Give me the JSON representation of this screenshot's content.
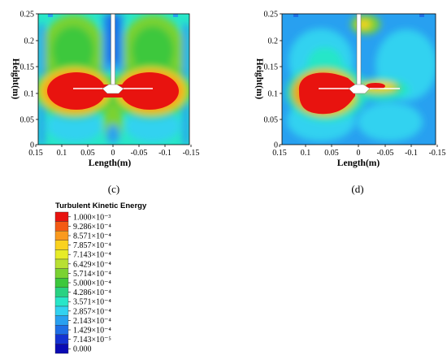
{
  "panels": [
    {
      "label": "(c)",
      "xlabel": "Length(m)",
      "ylabel": "Height(m)",
      "xticks": [
        "0.15",
        "0.1",
        "0.05",
        "0",
        "-0.05",
        "-0.1",
        "-0.15"
      ],
      "yticks": [
        "0",
        "0.05",
        "0.1",
        "0.15",
        "0.2",
        "0.25"
      ]
    },
    {
      "label": "(d)",
      "xlabel": "Length(m)",
      "ylabel": "Height(m)",
      "xticks": [
        "0.15",
        "0.1",
        "0.05",
        "0",
        "-0.05",
        "-0.1",
        "-0.15"
      ],
      "yticks": [
        "0",
        "0.05",
        "0.1",
        "0.15",
        "0.2",
        "0.25"
      ]
    }
  ],
  "legend": {
    "title": "Turbulent Kinetic Energy",
    "levels": [
      {
        "label": "1.000×10⁻³",
        "color": "#e8130f"
      },
      {
        "label": "9.286×10⁻⁴",
        "color": "#f45a14"
      },
      {
        "label": "8.571×10⁻⁴",
        "color": "#fa9a1e"
      },
      {
        "label": "7.857×10⁻⁴",
        "color": "#fad21e"
      },
      {
        "label": "7.143×10⁻⁴",
        "color": "#e6ec28"
      },
      {
        "label": "6.429×10⁻⁴",
        "color": "#b8e032"
      },
      {
        "label": "5.714×10⁻⁴",
        "color": "#7ad232"
      },
      {
        "label": "5.000×10⁻⁴",
        "color": "#3cc83c"
      },
      {
        "label": "4.286×10⁻⁴",
        "color": "#28d282"
      },
      {
        "label": "3.571×10⁻⁴",
        "color": "#28e6c8"
      },
      {
        "label": "2.857×10⁻⁴",
        "color": "#32d2f0"
      },
      {
        "label": "2.143×10⁻⁴",
        "color": "#28a0f0"
      },
      {
        "label": "1.429×10⁻⁴",
        "color": "#1e6ee6"
      },
      {
        "label": "7.143×10⁻⁵",
        "color": "#1432d2"
      },
      {
        "label": "0.000",
        "color": "#0a0ab4"
      }
    ]
  },
  "chart_data": [
    {
      "type": "heatmap",
      "title": "",
      "xlabel": "Length(m)",
      "ylabel": "Height(m)",
      "xlim": [
        0.15,
        -0.15
      ],
      "ylim": [
        0,
        0.25
      ],
      "field": "Turbulent Kinetic Energy",
      "peak_regions": [
        {
          "x": [
            0.12,
            0.02
          ],
          "y": [
            0.075,
            0.13
          ],
          "level": "≥1.000×10⁻³"
        },
        {
          "x": [
            -0.02,
            -0.12
          ],
          "y": [
            0.075,
            0.13
          ],
          "level": "≥1.000×10⁻³"
        }
      ]
    },
    {
      "type": "heatmap",
      "title": "",
      "xlabel": "Length(m)",
      "ylabel": "Height(m)",
      "xlim": [
        0.15,
        -0.15
      ],
      "ylim": [
        0,
        0.25
      ],
      "field": "Turbulent Kinetic Energy",
      "peak_regions": [
        {
          "x": [
            0.12,
            0.01
          ],
          "y": [
            0.07,
            0.135
          ],
          "level": "≥1.000×10⁻³"
        },
        {
          "x": [
            -0.01,
            -0.065
          ],
          "y": [
            0.105,
            0.118
          ],
          "level": "≥1.000×10⁻³"
        }
      ]
    }
  ]
}
